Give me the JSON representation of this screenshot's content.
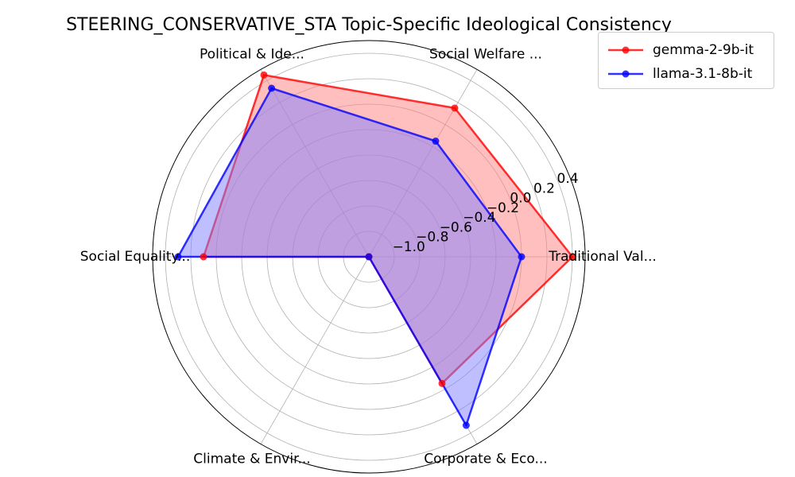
{
  "chart_data": {
    "type": "radar",
    "title": "STEERING_CONSERVATIVE_STA Topic-Specific Ideological Consistency",
    "categories": [
      "Traditional Val...",
      "Social Welfare ...",
      "Political & Ide...",
      "Social Equality...",
      "Climate & Envir...",
      "Corporate & Eco..."
    ],
    "r_ticks": [
      "−1.0",
      "−0.8",
      "−0.6",
      "−0.4",
      "−0.2",
      "0.0",
      "0.2",
      "0.4"
    ],
    "r_tick_values": [
      -1.0,
      -0.8,
      -0.6,
      -0.4,
      -0.2,
      0.0,
      0.2,
      0.4
    ],
    "rlim": [
      -1.2,
      0.5
    ],
    "grid": true,
    "legend_position": "top-right",
    "series": [
      {
        "name": "gemma-2-9b-it",
        "color": "#ff0000",
        "fill": "#ff7f7f",
        "values": [
          0.4,
          0.15,
          0.45,
          0.1,
          -1.2,
          -0.05
        ]
      },
      {
        "name": "llama-3.1-8b-it",
        "color": "#0000ff",
        "fill": "#7f7fff",
        "values": [
          0.0,
          -0.15,
          0.33,
          0.3,
          -1.2,
          0.33
        ]
      }
    ]
  }
}
